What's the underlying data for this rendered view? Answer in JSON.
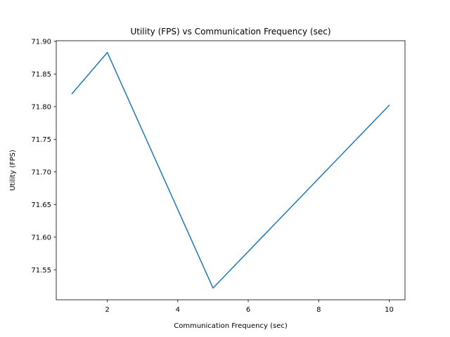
{
  "chart_data": {
    "type": "line",
    "title": "Utility (FPS) vs Communication Frequency (sec)",
    "xlabel": "Communication Frequency (sec)",
    "ylabel": "Utility (FPS)",
    "x": [
      1,
      2,
      5,
      10
    ],
    "series": [
      {
        "values": [
          71.82,
          71.883,
          71.522,
          71.802
        ],
        "color": "#1f77b4"
      }
    ],
    "xlim": [
      0.55,
      10.45
    ],
    "ylim": [
      71.504,
      71.901
    ],
    "xticks": [
      2,
      4,
      6,
      8,
      10
    ],
    "xtick_labels": [
      "2",
      "4",
      "6",
      "8",
      "10"
    ],
    "yticks": [
      71.55,
      71.6,
      71.65,
      71.7,
      71.75,
      71.8,
      71.85,
      71.9
    ],
    "ytick_labels": [
      "71.55",
      "71.60",
      "71.65",
      "71.70",
      "71.75",
      "71.80",
      "71.85",
      "71.90"
    ],
    "grid": false,
    "legend": "none"
  }
}
